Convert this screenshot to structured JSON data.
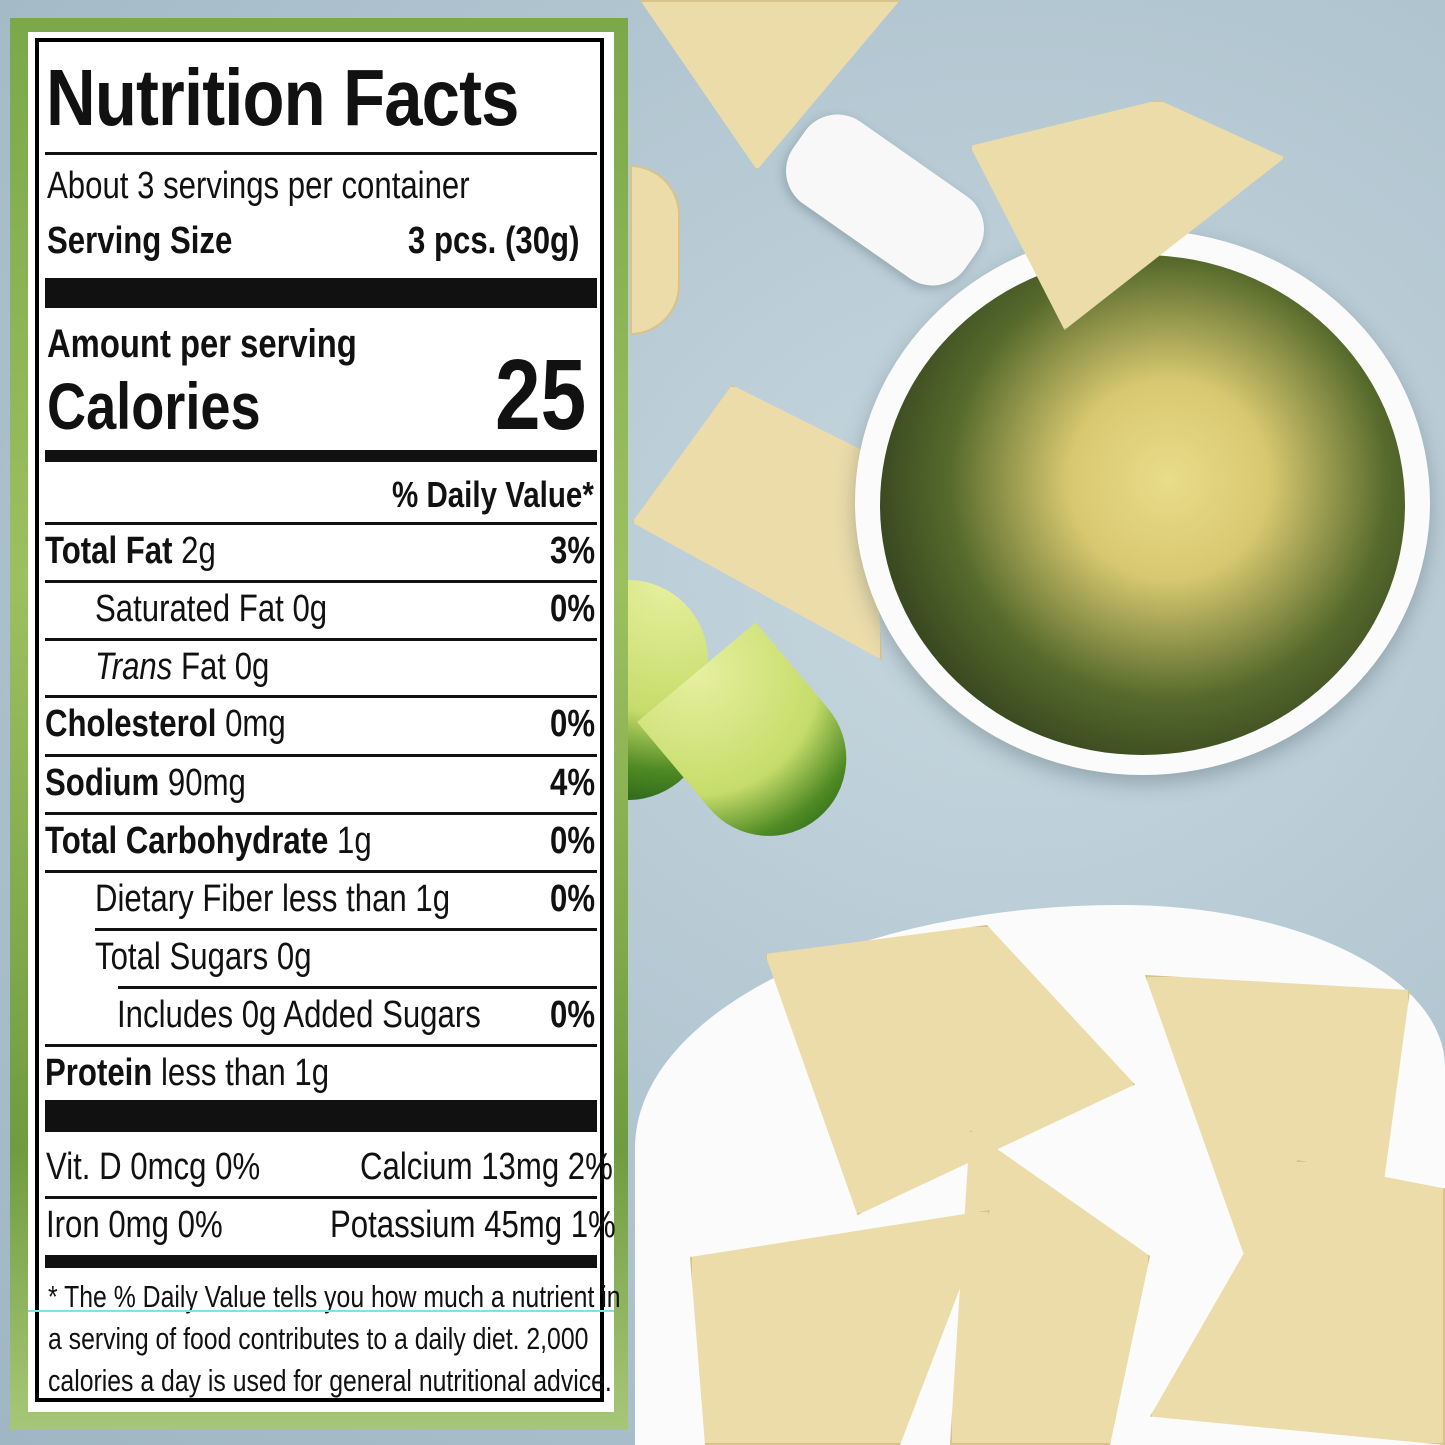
{
  "title": "Nutrition Facts",
  "servings_per_container": "About 3 servings per container",
  "serving_size_label": "Serving Size",
  "serving_size_value": "3 pcs. (30g)",
  "amount_per_serving": "Amount per serving",
  "calories_label": "Calories",
  "calories_value": "25",
  "daily_value_header": "% Daily Value*",
  "nutrients": [
    {
      "name": "Total Fat",
      "amount": "2g",
      "dv": "3%"
    },
    {
      "name": "Saturated Fat",
      "amount": "0g",
      "dv": "0%"
    },
    {
      "name": "Trans",
      "name_suffix": "Fat",
      "amount": "0g",
      "dv": ""
    },
    {
      "name": "Cholesterol",
      "amount": "0mg",
      "dv": "0%"
    },
    {
      "name": "Sodium",
      "amount": "90mg",
      "dv": "4%"
    },
    {
      "name": "Total Carbohydrate",
      "amount": "1g",
      "dv": "0%"
    },
    {
      "name": "Dietary Fiber",
      "amount": "less than 1g",
      "dv": "0%"
    },
    {
      "name": "Total Sugars",
      "amount": "0g",
      "dv": ""
    },
    {
      "name": "Includes 0g Added Sugars",
      "amount": "",
      "dv": "0%"
    },
    {
      "name": "Protein",
      "amount": "less than 1g",
      "dv": ""
    }
  ],
  "vitamins": [
    {
      "text": "Vit. D 0mcg  0%"
    },
    {
      "text": "Calcium 13mg  2%"
    },
    {
      "text": "Iron 0mg  0%"
    },
    {
      "text": "Potassium 45mg  1%"
    }
  ],
  "footnote": [
    "* The % Daily Value tells you how much a nutrient in",
    "a serving of food contributes to a daily diet. 2,000",
    "calories a day is used for general nutritional advice."
  ],
  "colors": {
    "frame": "#7aa84a",
    "background": "#b9ccd6"
  }
}
